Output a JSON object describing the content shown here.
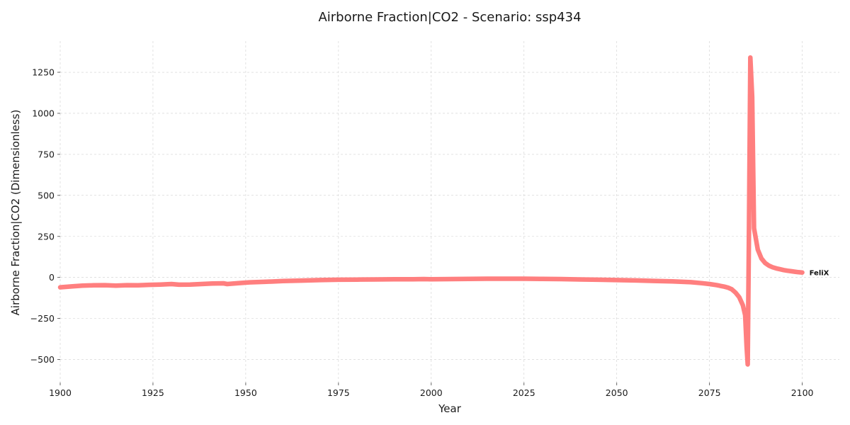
{
  "chart_data": {
    "type": "line",
    "title": "Airborne Fraction|CO2 - Scenario: ssp434",
    "xlabel": "Year",
    "ylabel": "Airborne Fraction|CO2 (Dimensionless)",
    "xlim": [
      1900,
      2110
    ],
    "ylim": [
      -640,
      1440
    ],
    "xticks": [
      1900,
      1925,
      1950,
      1975,
      2000,
      2025,
      2050,
      2075,
      2100
    ],
    "yticks": [
      -500,
      -250,
      0,
      250,
      500,
      750,
      1000,
      1250
    ],
    "ytick_labels": [
      "−500",
      "−250",
      "0",
      "250",
      "500",
      "750",
      "1000",
      "1250"
    ],
    "grid": true,
    "series": [
      {
        "name": "FeliX",
        "color": "#ff7f7f",
        "x": [
          1900,
          1903,
          1906,
          1909,
          1912,
          1915,
          1918,
          1921,
          1924,
          1927,
          1930,
          1932,
          1935,
          1938,
          1941,
          1944,
          1945,
          1948,
          1951,
          1955,
          1960,
          1965,
          1970,
          1975,
          1980,
          1985,
          1990,
          1995,
          1998,
          2000,
          2005,
          2010,
          2015,
          2020,
          2025,
          2030,
          2035,
          2040,
          2045,
          2050,
          2055,
          2060,
          2065,
          2070,
          2073,
          2075,
          2077,
          2079,
          2080,
          2081,
          2082,
          2083,
          2084,
          2084.6,
          2085,
          2085.3,
          2085.6,
          2086,
          2086.5,
          2087,
          2088,
          2089,
          2090,
          2091,
          2092,
          2093,
          2094,
          2095,
          2096,
          2097,
          2098,
          2099,
          2100
        ],
        "y": [
          -60,
          -55,
          -50,
          -48,
          -47,
          -50,
          -47,
          -48,
          -45,
          -43,
          -40,
          -44,
          -43,
          -40,
          -37,
          -36,
          -40,
          -35,
          -30,
          -27,
          -22,
          -19,
          -16,
          -14,
          -13,
          -12,
          -11,
          -11,
          -10,
          -11,
          -10,
          -9,
          -8,
          -8,
          -8,
          -9,
          -10,
          -12,
          -14,
          -16,
          -18,
          -21,
          -24,
          -29,
          -35,
          -40,
          -47,
          -56,
          -62,
          -72,
          -92,
          -120,
          -170,
          -230,
          -420,
          -530,
          200,
          1340,
          1100,
          300,
          170,
          115,
          88,
          72,
          62,
          55,
          50,
          45,
          41,
          38,
          35,
          32,
          30
        ]
      }
    ]
  }
}
